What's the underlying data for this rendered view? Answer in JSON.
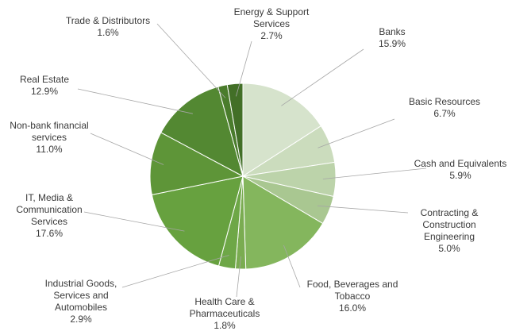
{
  "chart_data": {
    "type": "pie",
    "title": "",
    "slices": [
      {
        "name_lines": [
          "Banks"
        ],
        "value_label": "15.9%",
        "value": 15.9,
        "color": "#d6e3cc"
      },
      {
        "name_lines": [
          "Basic Resources"
        ],
        "value_label": "6.7%",
        "value": 6.7,
        "color": "#cbdcbd"
      },
      {
        "name_lines": [
          "Cash and Equivalents"
        ],
        "value_label": "5.9%",
        "value": 5.9,
        "color": "#bcd3aa"
      },
      {
        "name_lines": [
          "Contracting &",
          "Construction",
          "Engineering"
        ],
        "value_label": "5.0%",
        "value": 5.0,
        "color": "#a9c791"
      },
      {
        "name_lines": [
          "Food, Beverages and",
          "Tobacco"
        ],
        "value_label": "16.0%",
        "value": 16.0,
        "color": "#84b65d"
      },
      {
        "name_lines": [
          "Health Care &",
          "Pharmaceuticals"
        ],
        "value_label": "1.8%",
        "value": 1.8,
        "color": "#7aac51"
      },
      {
        "name_lines": [
          "Industrial Goods,",
          "Services and",
          "Automobiles"
        ],
        "value_label": "2.9%",
        "value": 2.9,
        "color": "#6ea747"
      },
      {
        "name_lines": [
          "IT, Media &",
          "Communication",
          "Services"
        ],
        "value_label": "17.6%",
        "value": 17.6,
        "color": "#67a13f"
      },
      {
        "name_lines": [
          "Non-bank financial",
          "services"
        ],
        "value_label": "11.0%",
        "value": 11.0,
        "color": "#5e9538"
      },
      {
        "name_lines": [
          "Real Estate"
        ],
        "value_label": "12.9%",
        "value": 12.9,
        "color": "#538832"
      },
      {
        "name_lines": [
          "Trade & Distributors"
        ],
        "value_label": "1.6%",
        "value": 1.6,
        "color": "#4a7c2c"
      },
      {
        "name_lines": [
          "Energy & Support",
          "Services"
        ],
        "value_label": "2.7%",
        "value": 2.7,
        "color": "#426f27"
      }
    ]
  }
}
